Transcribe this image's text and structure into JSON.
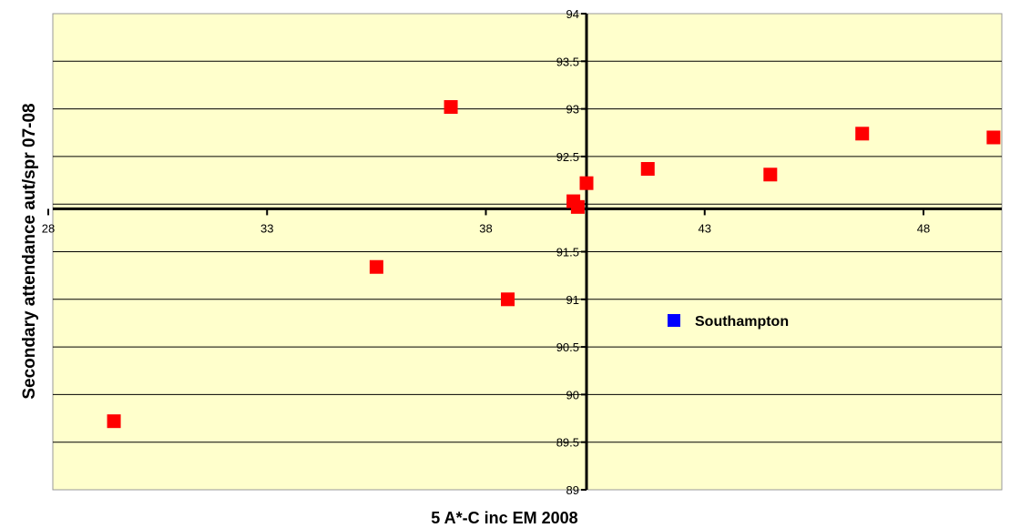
{
  "chart_data": {
    "type": "scatter",
    "title": "",
    "xlabel": "5 A*-C inc EM 2008",
    "ylabel": "Secondary attendance aut/spr 07-08",
    "xlim": [
      28,
      50.5
    ],
    "ylim": [
      89,
      94
    ],
    "x_ticks": [
      28,
      33,
      38,
      43,
      48
    ],
    "y_ticks": [
      89,
      89.5,
      90,
      90.5,
      91,
      91.5,
      92,
      92.5,
      93,
      93.5,
      94
    ],
    "x_axis_crosses_y": 91.95,
    "y_axis_crosses_x": 40.3,
    "grid": "horizontal",
    "plot_background": "#ffffcc",
    "series": [
      {
        "color": "#ff0000",
        "marker": "square",
        "points": [
          {
            "x": 29.5,
            "y": 89.72
          },
          {
            "x": 35.5,
            "y": 91.34
          },
          {
            "x": 37.2,
            "y": 93.02
          },
          {
            "x": 38.5,
            "y": 91.0
          },
          {
            "x": 40.0,
            "y": 92.03
          },
          {
            "x": 40.1,
            "y": 91.97
          },
          {
            "x": 40.3,
            "y": 92.22
          },
          {
            "x": 41.7,
            "y": 92.37
          },
          {
            "x": 44.5,
            "y": 92.31
          },
          {
            "x": 46.6,
            "y": 92.74
          },
          {
            "x": 49.6,
            "y": 92.7
          }
        ]
      },
      {
        "name": "Southampton",
        "color": "#0000ff",
        "marker": "square",
        "points": []
      }
    ],
    "legend": {
      "placement": "center-right",
      "entries": [
        "Southampton"
      ]
    }
  }
}
